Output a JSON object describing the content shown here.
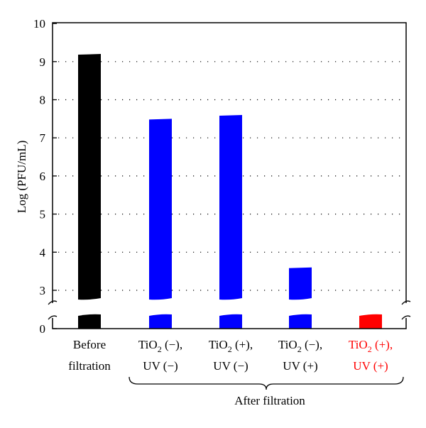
{
  "chart_data": {
    "type": "bar",
    "ylabel": "Log (PFU/mL)",
    "y_ticks": [
      "0",
      "3",
      "4",
      "5",
      "6",
      "7",
      "8",
      "9",
      "10"
    ],
    "ylim": [
      0,
      10
    ],
    "axis_break": "between 0 and 3",
    "grid": "horizontal dotted",
    "categories": [
      {
        "line1": "Before",
        "line2": "filtration",
        "sub": "",
        "line1_tail": ""
      },
      {
        "line1": "TiO",
        "sub": "2",
        "line1_tail": " (−),",
        "line2": "UV (−)"
      },
      {
        "line1": "TiO",
        "sub": "2",
        "line1_tail": " (+),",
        "line2": "UV (−)"
      },
      {
        "line1": "TiO",
        "sub": "2",
        "line1_tail": " (−),",
        "line2": "UV (+)"
      },
      {
        "line1": "TiO",
        "sub": "2",
        "line1_tail": " (+),",
        "line2": "UV (+)"
      }
    ],
    "values": [
      9.2,
      7.5,
      7.6,
      3.6,
      2.9
    ],
    "colors": [
      "#000000",
      "#0000ff",
      "#0000ff",
      "#0000ff",
      "#ff0000"
    ],
    "label_colors": [
      "#000000",
      "#000000",
      "#000000",
      "#000000",
      "#ff0000"
    ],
    "group_label": "After filtration"
  }
}
